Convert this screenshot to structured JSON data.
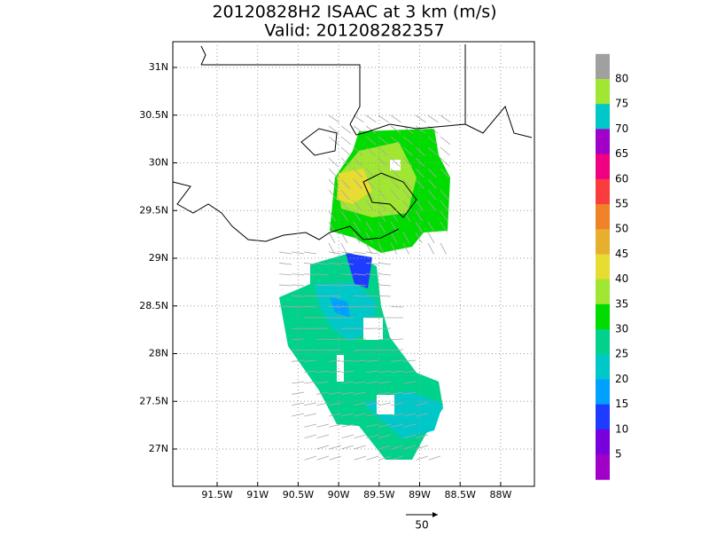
{
  "title": "20120828H2 ISAAC at 3 km (m/s)",
  "subtitle": "Valid: 201208282357",
  "lon_labels": [
    "91.5W",
    "91W",
    "90.5W",
    "90W",
    "89.5W",
    "89W",
    "88.5W",
    "88W"
  ],
  "lat_labels": [
    "31N",
    "30.5N",
    "30N",
    "29.5N",
    "29N",
    "28.5N",
    "28N",
    "27.5N",
    "27N"
  ],
  "colorbar": {
    "labels": [
      "80",
      "75",
      "70",
      "65",
      "60",
      "55",
      "50",
      "45",
      "40",
      "35",
      "30",
      "25",
      "20",
      "15",
      "10",
      "5"
    ],
    "colors": [
      "#a0a0a0",
      "#a0e632",
      "#00c8c8",
      "#a000c8",
      "#f00082",
      "#fa3c3c",
      "#f08228",
      "#e6af2d",
      "#e6dc32",
      "#a0e632",
      "#00dc00",
      "#00d28c",
      "#00c8c8",
      "#00a0ff",
      "#1e3cff",
      "#7800dc",
      "#a000c8"
    ]
  },
  "vector_scale": "50"
}
